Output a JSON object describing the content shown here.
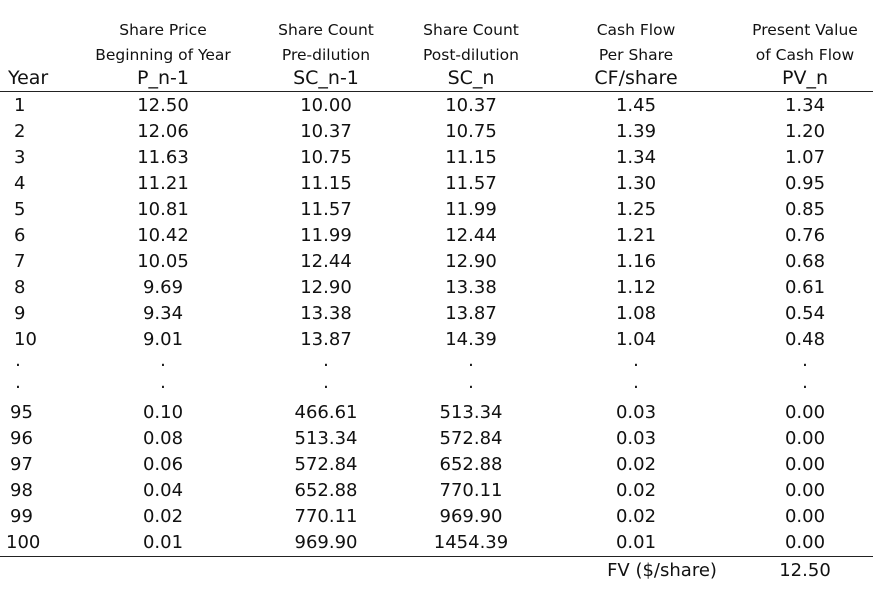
{
  "headers": [
    {
      "key": "price",
      "line1": "Share Price",
      "line2": "Beginning of Year",
      "symbol": "P_n-1"
    },
    {
      "key": "sc_pre",
      "line1": "Share Count",
      "line2": "Pre-dilution",
      "symbol": "SC_n-1"
    },
    {
      "key": "sc_post",
      "line1": "Share Count",
      "line2": "Post-dilution",
      "symbol": "SC_n"
    },
    {
      "key": "cf",
      "line1": "Cash Flow",
      "line2": "Per Share",
      "symbol": "CF/share"
    },
    {
      "key": "pv",
      "line1": "Present Value",
      "line2": "of Cash Flow",
      "symbol": "PV_n"
    }
  ],
  "year_label": "Year",
  "rows_top": [
    [
      "1",
      "12.50",
      "10.00",
      "10.37",
      "1.45",
      "1.34"
    ],
    [
      "2",
      "12.06",
      "10.37",
      "10.75",
      "1.39",
      "1.20"
    ],
    [
      "3",
      "11.63",
      "10.75",
      "11.15",
      "1.34",
      "1.07"
    ],
    [
      "4",
      "11.21",
      "11.15",
      "11.57",
      "1.30",
      "0.95"
    ],
    [
      "5",
      "10.81",
      "11.57",
      "11.99",
      "1.25",
      "0.85"
    ],
    [
      "6",
      "10.42",
      "11.99",
      "12.44",
      "1.21",
      "0.76"
    ],
    [
      "7",
      "10.05",
      "12.44",
      "12.90",
      "1.16",
      "0.68"
    ],
    [
      "8",
      "9.69",
      "12.90",
      "13.38",
      "1.12",
      "0.61"
    ],
    [
      "9",
      "9.34",
      "13.38",
      "13.87",
      "1.08",
      "0.54"
    ],
    [
      "10",
      "9.01",
      "13.87",
      "14.39",
      "1.04",
      "0.48"
    ]
  ],
  "ellipsis": ".",
  "rows_bottom": [
    [
      "95",
      "0.10",
      "466.61",
      "513.34",
      "0.03",
      "0.00"
    ],
    [
      "96",
      "0.08",
      "513.34",
      "572.84",
      "0.03",
      "0.00"
    ],
    [
      "97",
      "0.06",
      "572.84",
      "652.88",
      "0.02",
      "0.00"
    ],
    [
      "98",
      "0.04",
      "652.88",
      "770.11",
      "0.02",
      "0.00"
    ],
    [
      "99",
      "0.02",
      "770.11",
      "969.90",
      "0.02",
      "0.00"
    ],
    [
      "100",
      "0.01",
      "969.90",
      "1454.39",
      "0.01",
      "0.00"
    ]
  ],
  "footer": {
    "label": "FV ($/share)",
    "value": "12.50"
  }
}
